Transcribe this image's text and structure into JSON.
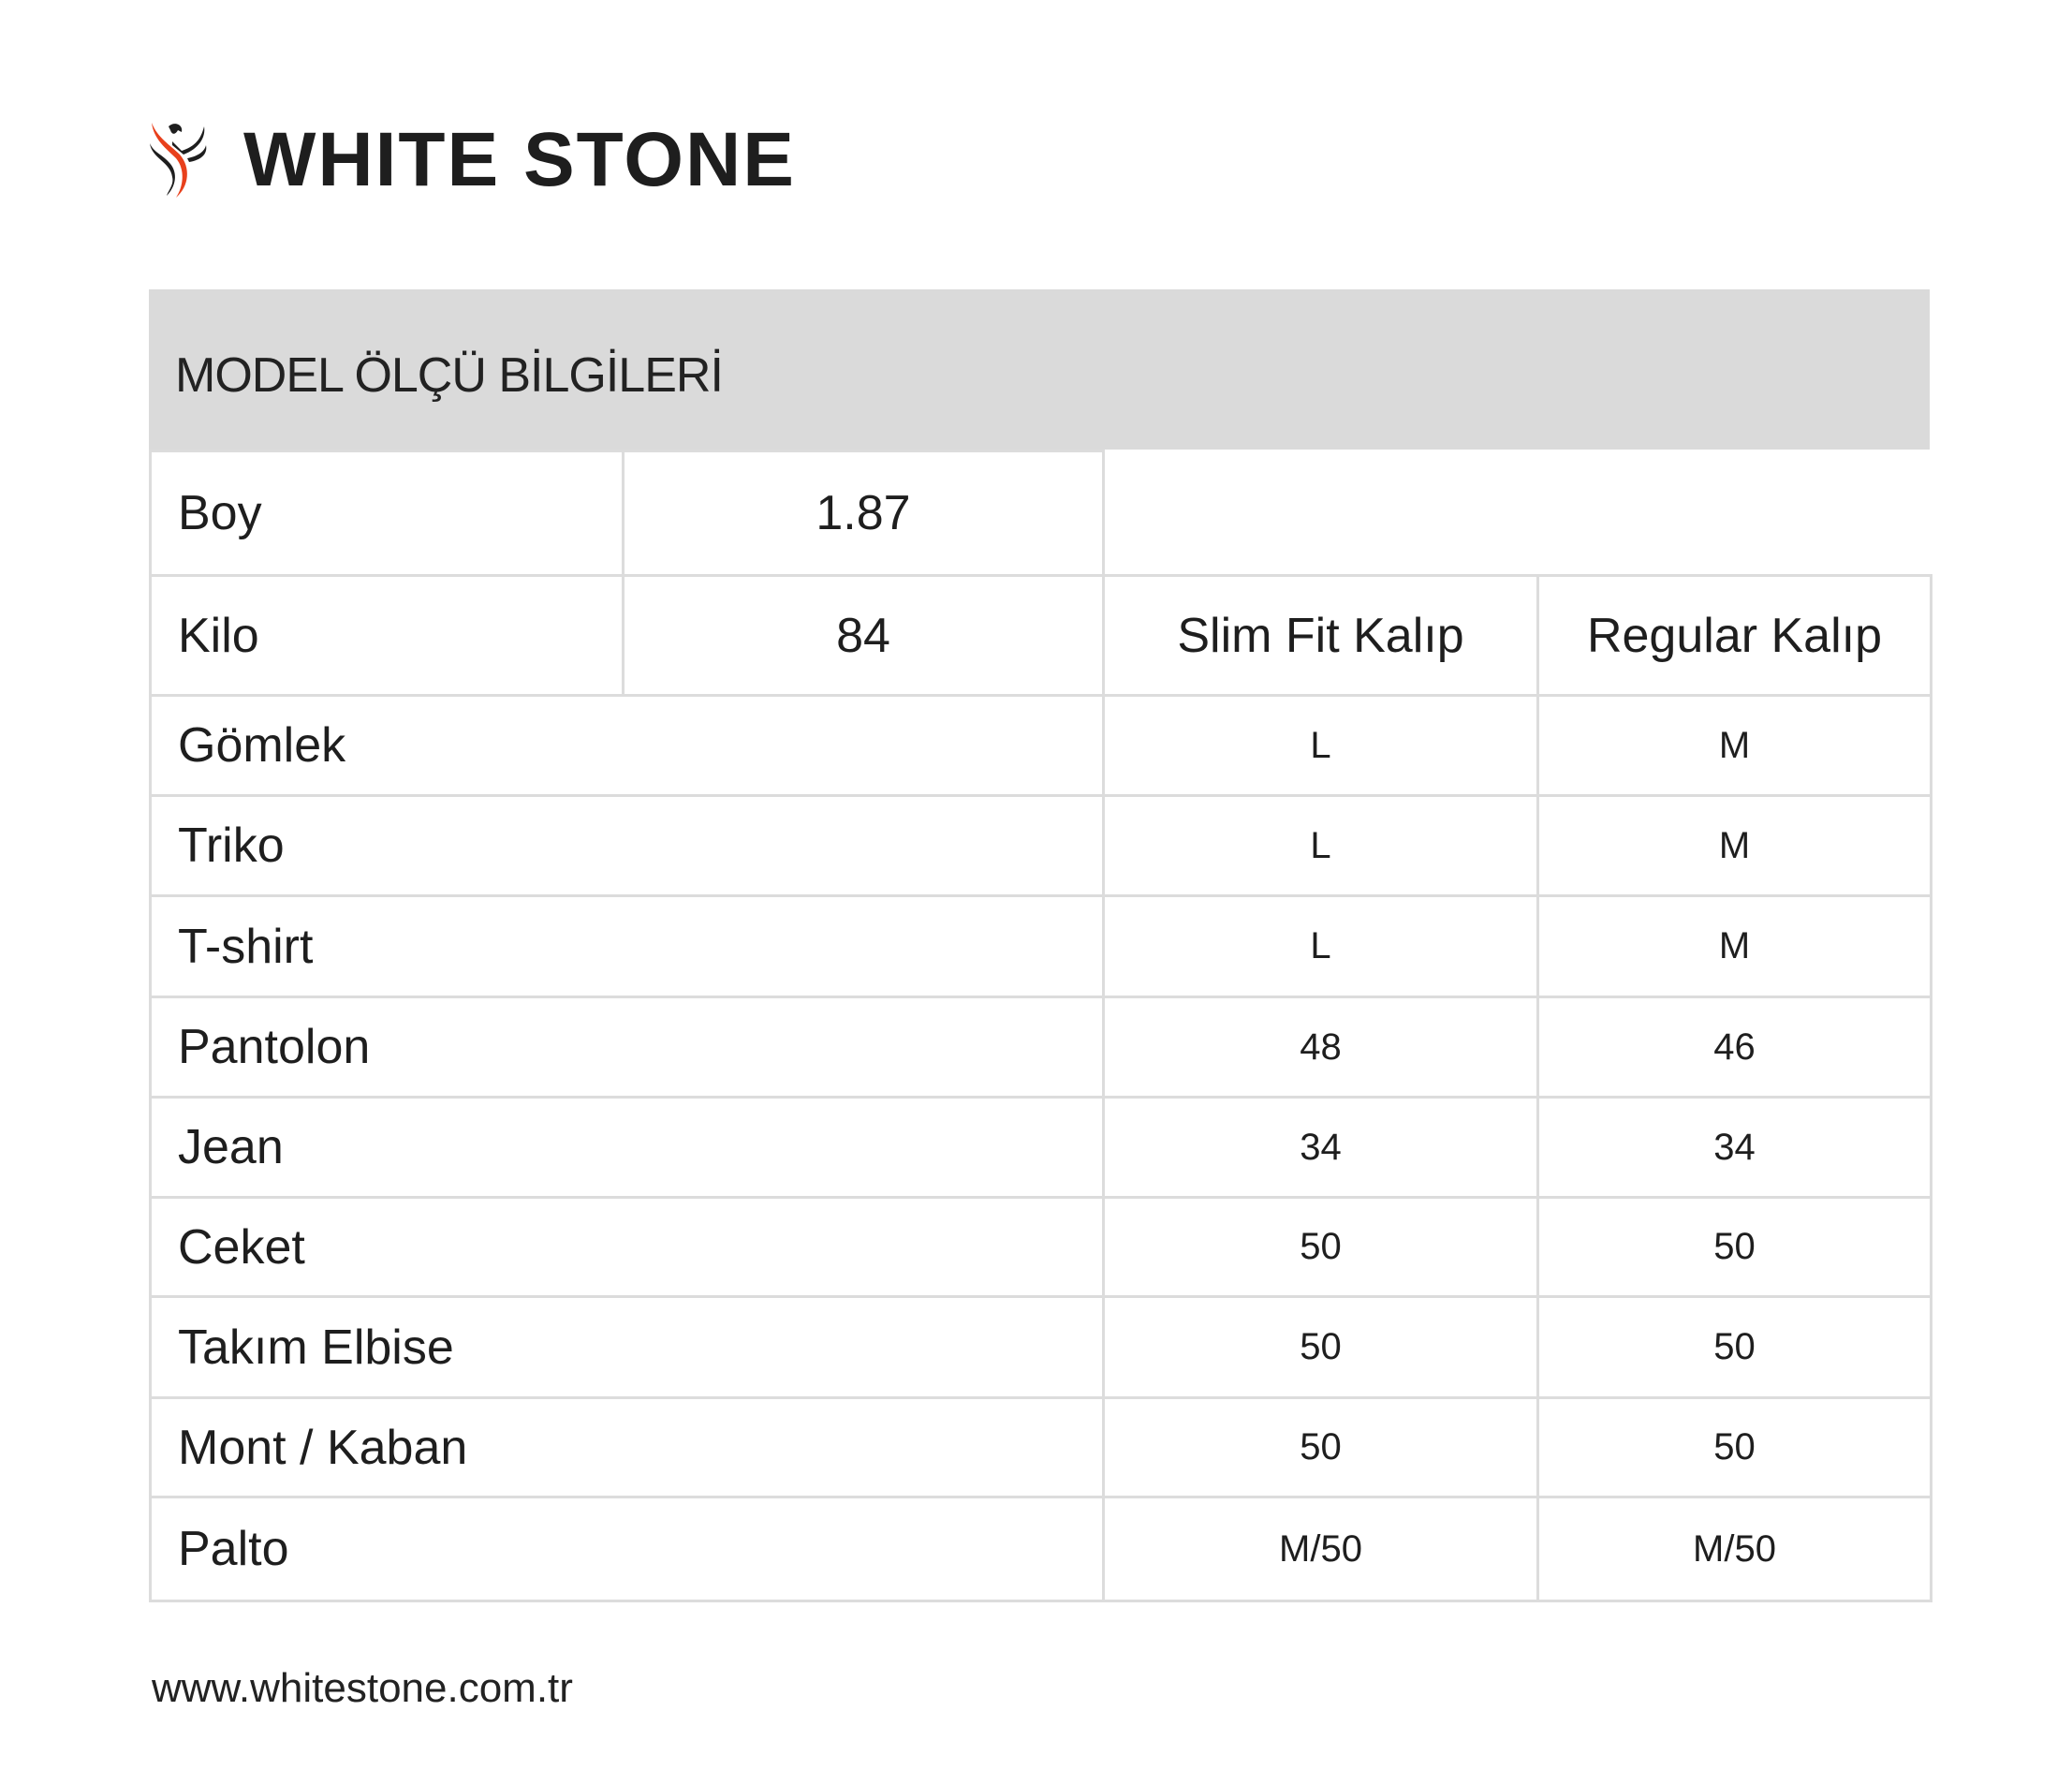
{
  "brand": {
    "name": "WHITE STONE",
    "logo_colors": {
      "primary": "#1e1e1e",
      "accent": "#e8401c"
    }
  },
  "title": "MODEL ÖLÇÜ BİLGİLERİ",
  "model": [
    {
      "label": "Boy",
      "value": "1.87"
    },
    {
      "label": "Kilo",
      "value": "84"
    }
  ],
  "columns": {
    "slim": "Slim Fit Kalıp",
    "regular": "Regular Kalıp"
  },
  "rows": [
    {
      "label": "Gömlek",
      "slim": "L",
      "regular": "M"
    },
    {
      "label": "Triko",
      "slim": "L",
      "regular": "M"
    },
    {
      "label": "T-shirt",
      "slim": "L",
      "regular": "M"
    },
    {
      "label": "Pantolon",
      "slim": "48",
      "regular": "46"
    },
    {
      "label": "Jean",
      "slim": "34",
      "regular": "34"
    },
    {
      "label": "Ceket",
      "slim": "50",
      "regular": "50"
    },
    {
      "label": "Takım Elbise",
      "slim": "50",
      "regular": "50"
    },
    {
      "label": "Mont / Kaban",
      "slim": "50",
      "regular": "50"
    },
    {
      "label": "Palto",
      "slim": "M/50",
      "regular": "M/50"
    }
  ],
  "footer": "www.whitestone.com.tr"
}
